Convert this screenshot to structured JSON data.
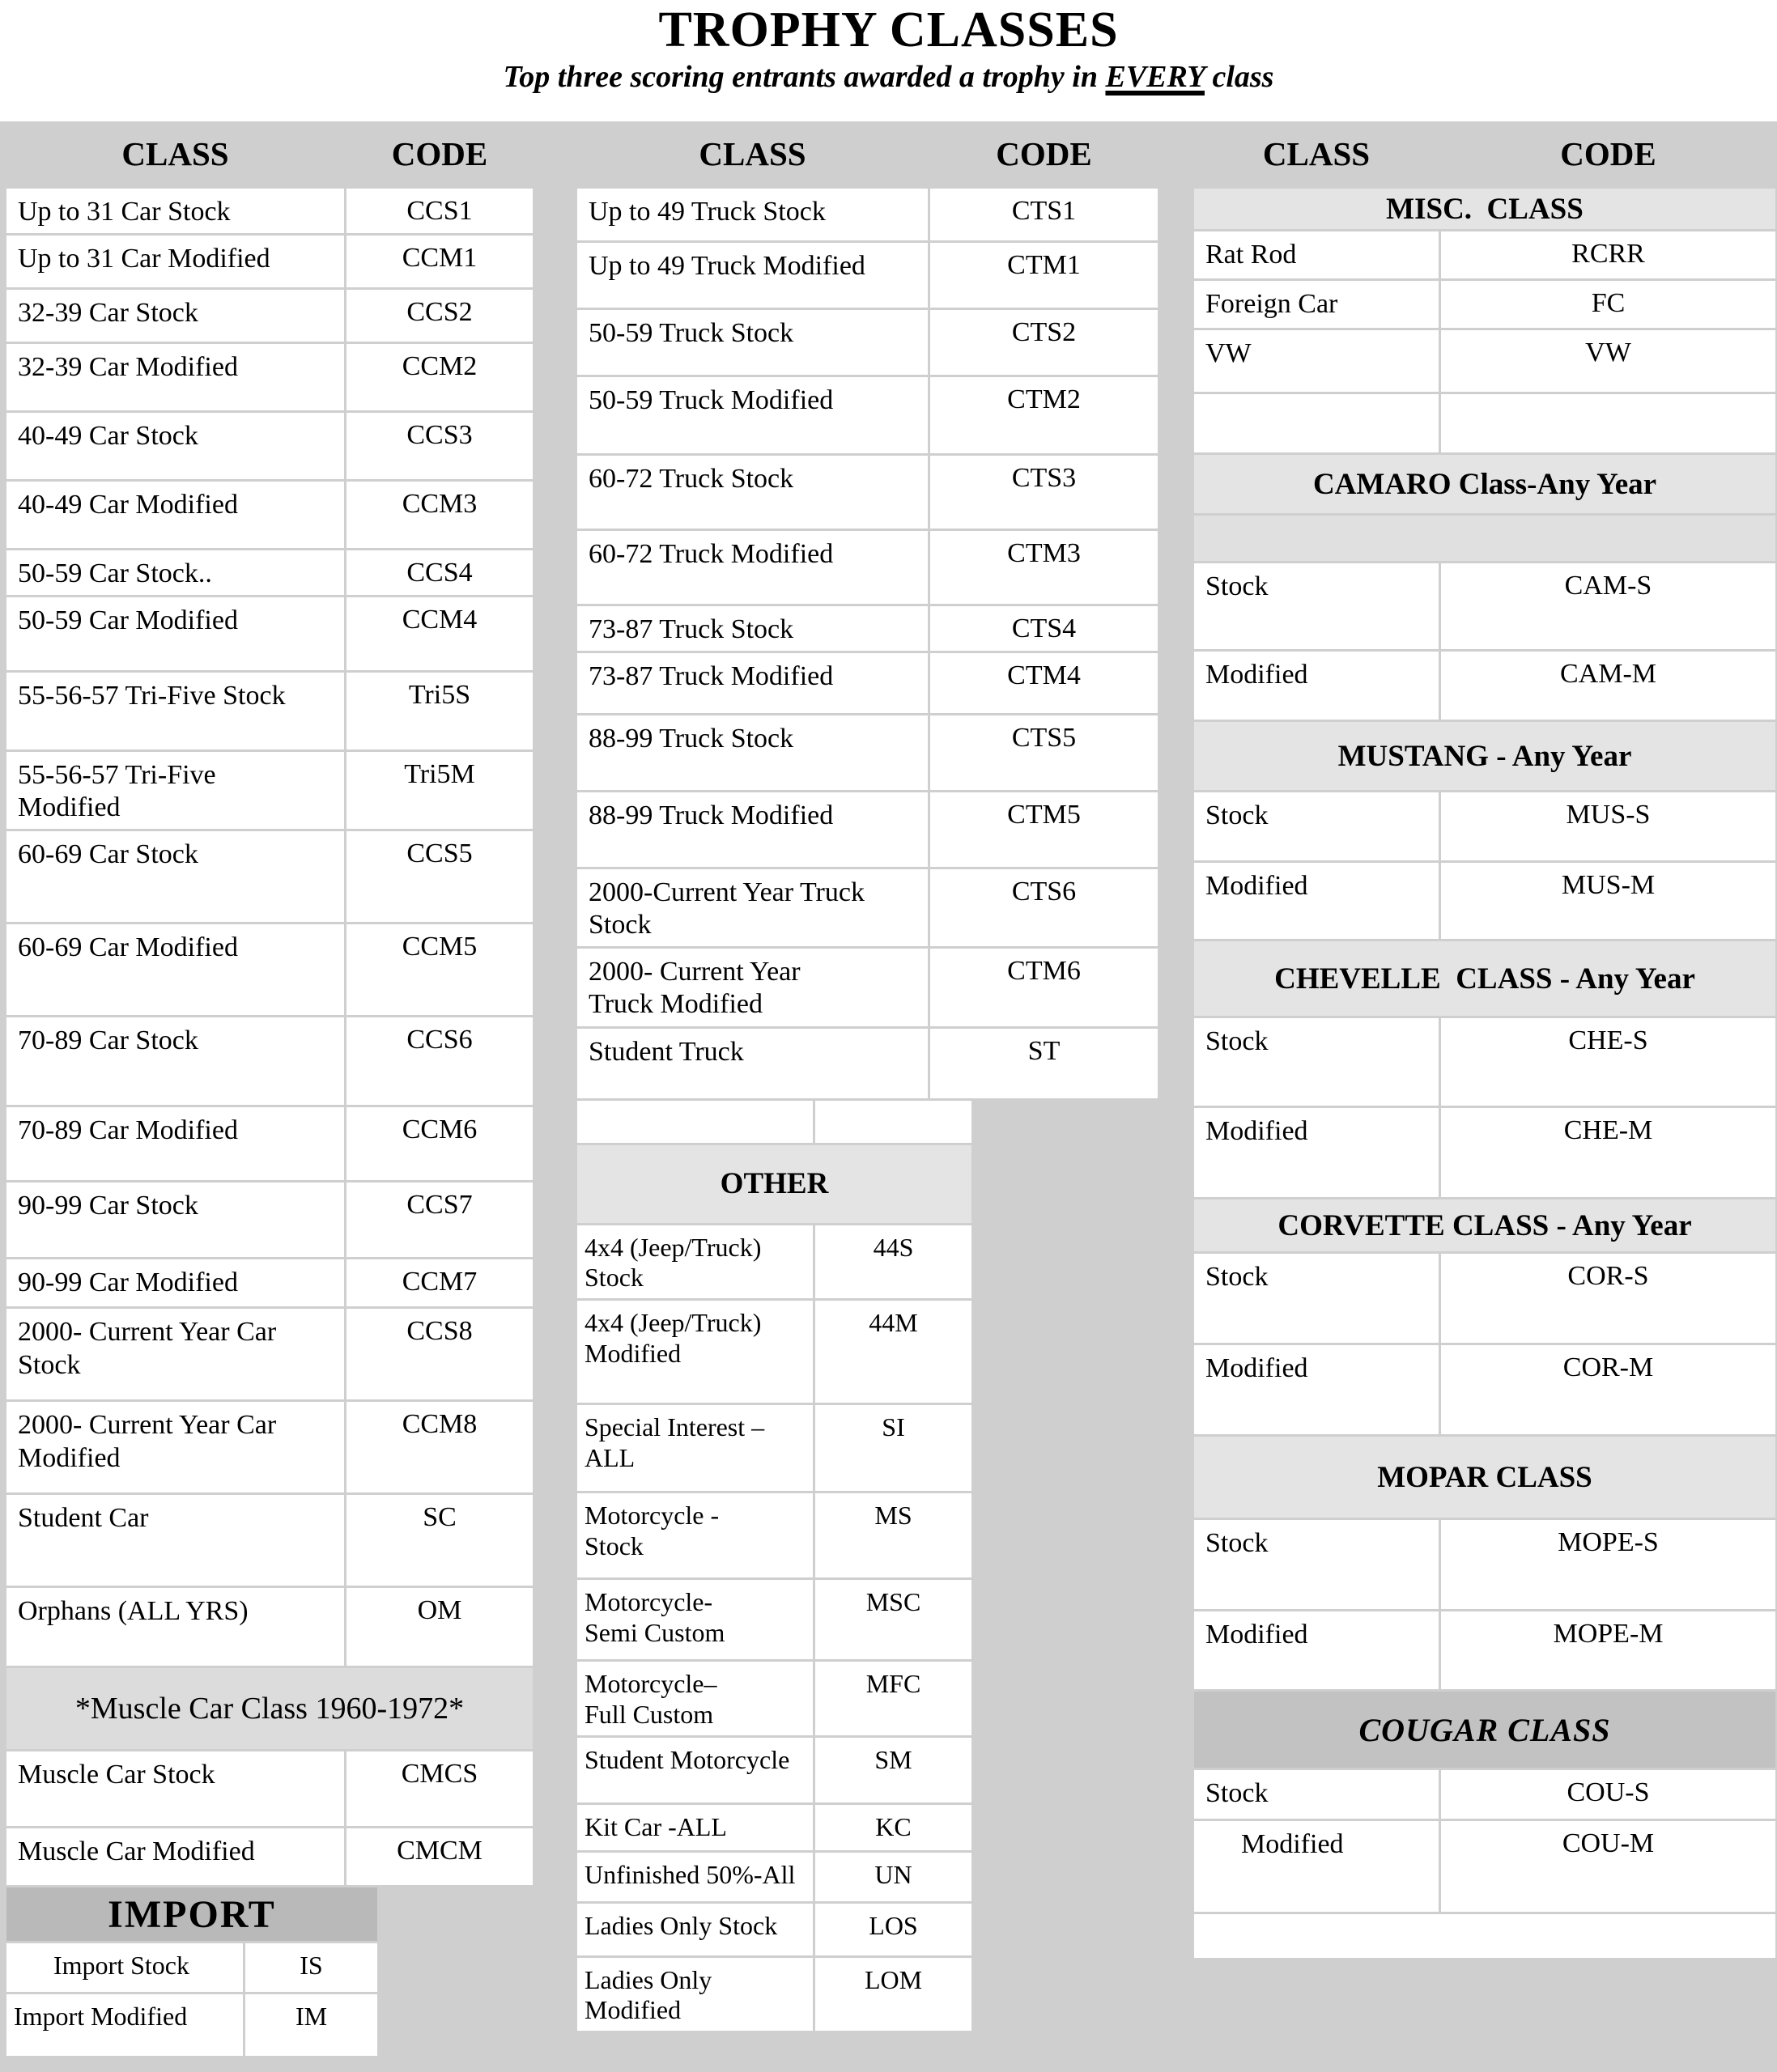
{
  "header": {
    "title": "TROPHY CLASSES",
    "subtitle_prefix": "Top three scoring entrants awarded a trophy in ",
    "subtitle_emphasis": "EVERY",
    "subtitle_suffix": " class"
  },
  "column_headers": {
    "class_label": "CLASS",
    "code_label": "CODE"
  },
  "columns": [
    {
      "name": "cars",
      "sections": [
        {
          "kind": "table",
          "rows": [
            {
              "c": "Up to 31 Car Stock",
              "k": "CCS1",
              "h": 50
            },
            {
              "c": "Up to 31 Car Modified",
              "k": "CCM1",
              "h": 64
            },
            {
              "c": "32-39 Car Stock",
              "k": "CCS2",
              "h": 64
            },
            {
              "c": "32-39 Car Modified",
              "k": "CCM2",
              "h": 82
            },
            {
              "c": "40-49 Car Stock",
              "k": "CCS3",
              "h": 82
            },
            {
              "c": "40-49 Car Modified",
              "k": "CCM3",
              "h": 82
            },
            {
              "c": "50-59 Car Stock..",
              "k": "CCS4",
              "h": 52
            },
            {
              "c": "50-59 Car Modified",
              "k": "CCM4",
              "h": 90
            },
            {
              "c": "55-56-57 Tri-Five Stock",
              "k": "Tri5S",
              "h": 95
            },
            {
              "c": "55-56-57 Tri-Five\nModified",
              "k": "Tri5M",
              "h": 94
            },
            {
              "c": "60-69 Car Stock",
              "k": "CCS5",
              "h": 112
            },
            {
              "c": "60-69 Car Modified",
              "k": "CCM5",
              "h": 112
            },
            {
              "c": "70-89 Car Stock",
              "k": "CCS6",
              "h": 108
            },
            {
              "c": "70-89 Car Modified",
              "k": "CCM6",
              "h": 90
            },
            {
              "c": "90-99 Car Stock",
              "k": "CCS7",
              "h": 92
            },
            {
              "c": "90-99 Car Modified",
              "k": "CCM7",
              "h": 58
            },
            {
              "c": "2000- Current Year Car\nStock",
              "k": "CCS8",
              "h": 112
            },
            {
              "c": "2000- Current Year Car\nModified",
              "k": "CCM8",
              "h": 112
            },
            {
              "c": "Student Car",
              "k": "SC",
              "h": 112
            },
            {
              "c": "Orphans (ALL YRS)",
              "k": "OM",
              "h": 96
            }
          ]
        },
        {
          "kind": "banner",
          "style": "light-plain",
          "text": "*Muscle Car Class 1960-1972*",
          "h": 100
        },
        {
          "kind": "table",
          "rows": [
            {
              "c": "Muscle Car Stock",
              "k": "CMCS",
              "h": 92
            },
            {
              "c": "Muscle Car Modified",
              "k": "CMCM",
              "h": 70
            }
          ]
        },
        {
          "kind": "banner",
          "style": "dark-big",
          "text": "IMPORT",
          "h": 66,
          "narrow": true
        },
        {
          "kind": "table",
          "narrow": true,
          "rows": [
            {
              "c": "Import Stock",
              "k": "IS",
              "h": 60,
              "pad": true
            },
            {
              "c": "Import Modified",
              "k": "IM",
              "h": 76
            }
          ]
        }
      ]
    },
    {
      "name": "trucks-other",
      "sections": [
        {
          "kind": "table",
          "rows": [
            {
              "c": "Up to 49 Truck Stock",
              "k": "CTS1",
              "h": 64
            },
            {
              "c": "Up to 49 Truck Modified",
              "k": "CTM1",
              "h": 80
            },
            {
              "c": "50-59 Truck Stock",
              "k": "CTS2",
              "h": 80
            },
            {
              "c": "50-59 Truck Modified",
              "k": "CTM2",
              "h": 94
            },
            {
              "c": "60-72 Truck Stock",
              "k": "CTS3",
              "h": 90
            },
            {
              "c": "60-72 Truck Modified",
              "k": "CTM3",
              "h": 90
            },
            {
              "c": "73-87 Truck Stock",
              "k": "CTS4",
              "h": 52
            },
            {
              "c": "73-87 Truck Modified",
              "k": "CTM4",
              "h": 74
            },
            {
              "c": "88-99 Truck Stock",
              "k": "CTS5",
              "h": 92
            },
            {
              "c": "88-99 Truck Modified",
              "k": "CTM5",
              "h": 92
            },
            {
              "c": "2000-Current Year Truck\nStock",
              "k": "CTS6",
              "h": 94
            },
            {
              "c": "2000- Current Year\nTruck Modified",
              "k": "CTM6",
              "h": 94
            },
            {
              "c": "Student Truck",
              "k": "ST",
              "h": 86
            }
          ]
        },
        {
          "kind": "table",
          "narrow": true,
          "rows": [
            {
              "c": "",
              "k": "",
              "h": 52
            }
          ]
        },
        {
          "kind": "banner",
          "style": "light",
          "text": "OTHER",
          "h": 96,
          "narrow": true
        },
        {
          "kind": "table",
          "narrow": true,
          "rows": [
            {
              "c": "4x4 (Jeep/Truck) Stock",
              "k": "44S",
              "h": 74
            },
            {
              "c": "4x4 (Jeep/Truck)\nModified",
              "k": "44M",
              "h": 126
            },
            {
              "c": "Special Interest –ALL",
              "k": "SI",
              "h": 106
            },
            {
              "c": "Motorcycle -\nStock",
              "k": "MS",
              "h": 104
            },
            {
              "c": "Motorcycle-\nSemi Custom",
              "k": "MSC",
              "h": 98
            },
            {
              "c": "Motorcycle–\nFull Custom",
              "k": "MFC",
              "h": 86
            },
            {
              "c": "Student Motorcycle",
              "k": "SM",
              "h": 80
            },
            {
              "c": "Kit Car  -ALL",
              "k": "KC",
              "h": 56
            },
            {
              "c": "Unfinished 50%-All",
              "k": "UN",
              "h": 60
            },
            {
              "c": "Ladies Only Stock",
              "k": "LOS",
              "h": 64
            },
            {
              "c": "Ladies Only Modified",
              "k": "LOM",
              "h": 80
            }
          ]
        }
      ]
    },
    {
      "name": "specialty",
      "sections": [
        {
          "kind": "banner",
          "style": "light",
          "text": "MISC.  CLASS",
          "h": 50
        },
        {
          "kind": "table",
          "rows": [
            {
              "c": "Rat Rod",
              "k": "RCRR",
              "h": 58
            },
            {
              "c": "Foreign Car",
              "k": "FC",
              "h": 58
            },
            {
              "c": "VW",
              "k": "VW",
              "h": 76
            },
            {
              "c": "",
              "k": "",
              "h": 72
            }
          ]
        },
        {
          "kind": "banner",
          "style": "light",
          "text": "CAMARO Class-Any Year",
          "h": 72
        },
        {
          "kind": "banner",
          "style": "gray-empty",
          "text": "",
          "h": 56
        },
        {
          "kind": "table",
          "rows": [
            {
              "c": "Stock",
              "k": "CAM-S",
              "h": 106
            },
            {
              "c": "Modified",
              "k": "CAM-M",
              "h": 84
            }
          ]
        },
        {
          "kind": "banner",
          "style": "light",
          "text": "MUSTANG - Any Year",
          "h": 84
        },
        {
          "kind": "table",
          "rows": [
            {
              "c": "Stock",
              "k": "MUS-S",
              "h": 84
            },
            {
              "c": "Modified",
              "k": "MUS-M",
              "h": 94
            }
          ]
        },
        {
          "kind": "banner",
          "style": "light",
          "text": "CHEVELLE  CLASS - Any Year",
          "h": 92
        },
        {
          "kind": "table",
          "rows": [
            {
              "c": "Stock",
              "k": "CHE-S",
              "h": 108
            },
            {
              "c": "Modified",
              "k": "CHE-M",
              "h": 110
            }
          ]
        },
        {
          "kind": "banner",
          "style": "light",
          "text": "CORVETTE CLASS - Any Year",
          "h": 64
        },
        {
          "kind": "table",
          "rows": [
            {
              "c": "Stock",
              "k": "COR-S",
              "h": 110
            },
            {
              "c": "Modified",
              "k": "COR-M",
              "h": 110
            }
          ]
        },
        {
          "kind": "banner",
          "style": "light",
          "text": "MOPAR CLASS",
          "h": 100
        },
        {
          "kind": "table",
          "rows": [
            {
              "c": "Stock",
              "k": "MOPE-S",
              "h": 110
            },
            {
              "c": "Modified",
              "k": "MOPE-M",
              "h": 96
            }
          ]
        },
        {
          "kind": "banner",
          "style": "dark-italic",
          "text": "COUGAR CLASS",
          "h": 94
        },
        {
          "kind": "table",
          "rows": [
            {
              "c": "Stock",
              "k": "COU-S",
              "h": 60
            },
            {
              "c": "Modified",
              "k": "COU-M",
              "h": 112,
              "pad": true
            }
          ]
        },
        {
          "kind": "banner",
          "style": "white",
          "text": "",
          "h": 54
        }
      ]
    }
  ]
}
